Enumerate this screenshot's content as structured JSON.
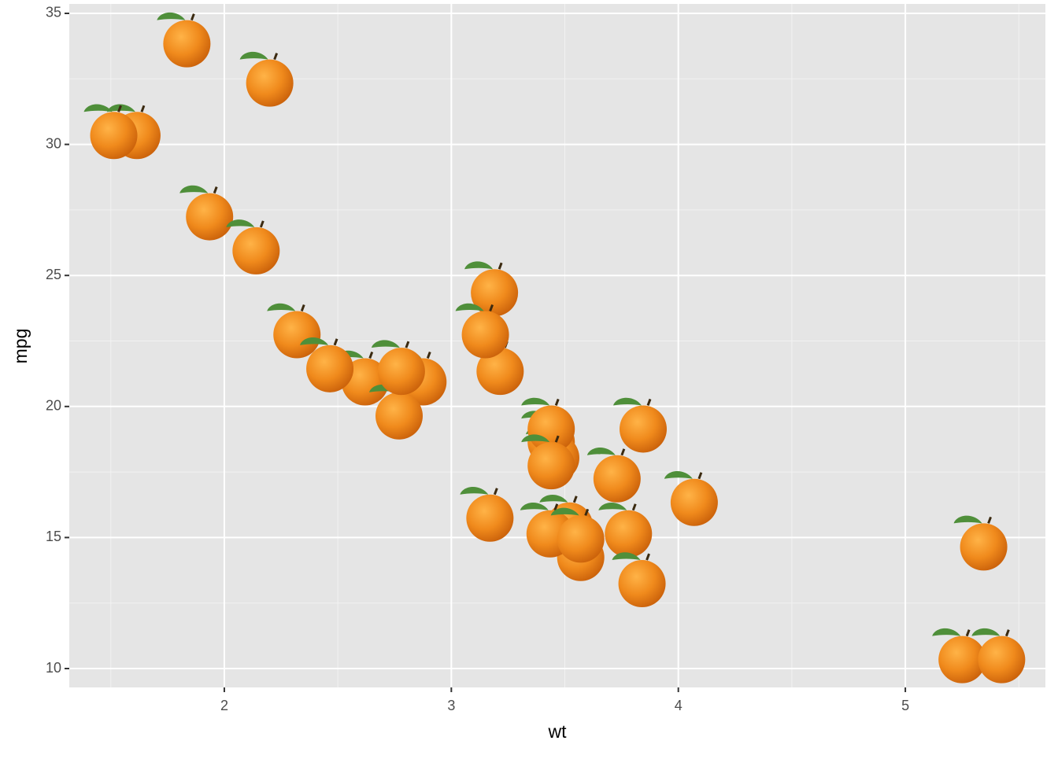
{
  "chart_data": {
    "type": "scatter",
    "x_label": "wt",
    "y_label": "mpg",
    "x": [
      2.62,
      2.875,
      2.32,
      3.215,
      3.44,
      3.46,
      3.57,
      3.19,
      3.15,
      3.44,
      3.44,
      4.07,
      3.73,
      3.78,
      5.25,
      5.424,
      5.345,
      2.2,
      1.615,
      1.835,
      2.465,
      3.52,
      3.435,
      3.84,
      3.845,
      1.935,
      2.14,
      1.513,
      3.17,
      2.77,
      3.57,
      2.78
    ],
    "values": [
      21.0,
      21.0,
      22.8,
      21.4,
      18.7,
      18.1,
      14.3,
      24.4,
      22.8,
      19.2,
      17.8,
      16.4,
      17.3,
      15.2,
      10.4,
      10.4,
      14.7,
      32.4,
      30.4,
      33.9,
      21.5,
      15.5,
      15.2,
      13.3,
      19.2,
      27.3,
      26.0,
      30.4,
      15.8,
      19.7,
      15.0,
      21.4
    ],
    "color": "#f08a1c",
    "xlim": [
      1.317,
      5.617
    ],
    "ylim": [
      9.28,
      35.36
    ],
    "xticks": [
      2,
      3,
      4,
      5
    ],
    "yticks": [
      10,
      15,
      20,
      25,
      30,
      35
    ],
    "xminor": [
      1.5,
      2.5,
      3.5,
      4.5,
      5.5
    ],
    "yminor": [
      12.5,
      17.5,
      22.5,
      27.5,
      32.5
    ],
    "grid": true
  }
}
